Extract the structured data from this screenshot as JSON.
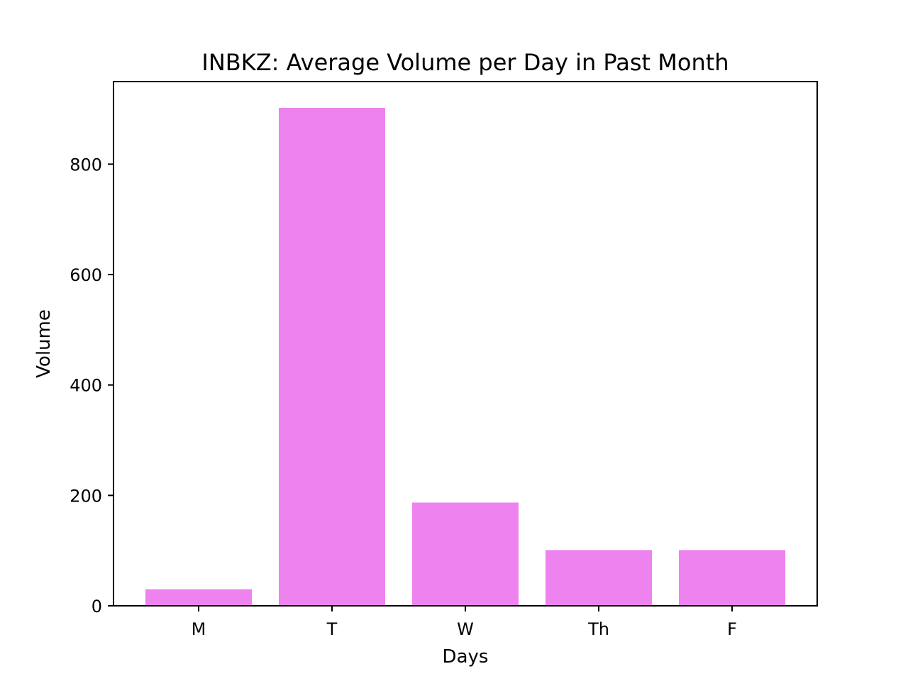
{
  "chart_data": {
    "type": "bar",
    "title": "INBKZ: Average Volume per Day in Past Month",
    "xlabel": "Days",
    "ylabel": "Volume",
    "categories": [
      "M",
      "T",
      "W",
      "Th",
      "F"
    ],
    "values": [
      30,
      902,
      187,
      101,
      101
    ],
    "ylim": [
      0,
      950
    ],
    "yticks": [
      0,
      200,
      400,
      600,
      800
    ],
    "grid": false,
    "colors": {
      "bar": "#ee82ee",
      "axis": "#000000",
      "background": "#ffffff"
    }
  }
}
